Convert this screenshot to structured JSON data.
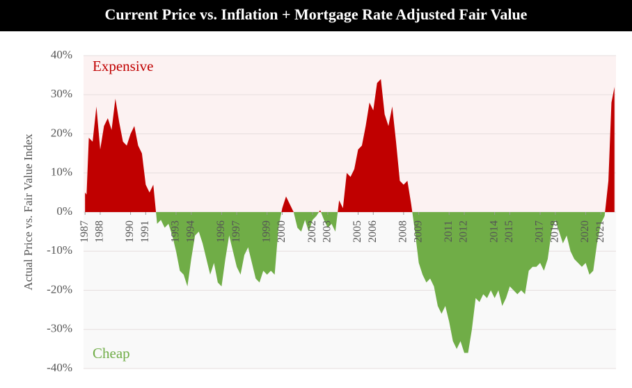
{
  "chart_data": {
    "type": "area",
    "title": "Current Price vs. Inflation + Mortgage Rate Adjusted Fair Value",
    "y_label": "Actual Price vs. Fair Value Index",
    "annotations": [
      "Expensive",
      "Cheap"
    ],
    "colors": {
      "positive": "#c00000",
      "negative": "#70ad47",
      "positive_band": "#fcf2f2",
      "negative_band": "#f9f9f9"
    },
    "grid": true,
    "xlim": [
      1986.9,
      2022.0
    ],
    "xticks": [
      1987,
      1988,
      1990,
      1991,
      1993,
      1994,
      1996,
      1997,
      1999,
      2000,
      2002,
      2003,
      2005,
      2006,
      2008,
      2009,
      2011,
      2012,
      2014,
      2015,
      2017,
      2018,
      2020,
      2021
    ],
    "ylim": [
      -40,
      40
    ],
    "yticks": [
      {
        "value": 40,
        "label": "40%"
      },
      {
        "value": 30,
        "label": "30%"
      },
      {
        "value": 20,
        "label": "20%"
      },
      {
        "value": 10,
        "label": "10%"
      },
      {
        "value": 0,
        "label": "0%"
      },
      {
        "value": -10,
        "label": "-10%"
      },
      {
        "value": -20,
        "label": "-20%"
      },
      {
        "value": -30,
        "label": "-30%"
      },
      {
        "value": -40,
        "label": "-40%"
      }
    ],
    "x": [
      1987.0,
      1987.1,
      1987.25,
      1987.5,
      1987.75,
      1988.0,
      1988.25,
      1988.5,
      1988.75,
      1989.0,
      1989.25,
      1989.5,
      1989.75,
      1990.0,
      1990.25,
      1990.5,
      1990.75,
      1991.0,
      1991.25,
      1991.5,
      1991.75,
      1992.0,
      1992.25,
      1992.5,
      1992.75,
      1993.0,
      1993.25,
      1993.5,
      1993.75,
      1994.0,
      1994.25,
      1994.5,
      1994.75,
      1995.0,
      1995.25,
      1995.5,
      1995.75,
      1996.0,
      1996.25,
      1996.5,
      1996.75,
      1997.0,
      1997.25,
      1997.5,
      1997.75,
      1998.0,
      1998.25,
      1998.5,
      1998.75,
      1999.0,
      1999.25,
      1999.5,
      1999.75,
      2000.0,
      2000.25,
      2000.5,
      2000.75,
      2001.0,
      2001.25,
      2001.5,
      2001.75,
      2002.0,
      2002.25,
      2002.5,
      2002.75,
      2003.0,
      2003.25,
      2003.5,
      2003.75,
      2004.0,
      2004.25,
      2004.5,
      2004.75,
      2005.0,
      2005.25,
      2005.5,
      2005.75,
      2006.0,
      2006.25,
      2006.5,
      2006.75,
      2007.0,
      2007.25,
      2007.5,
      2007.75,
      2008.0,
      2008.25,
      2008.5,
      2008.75,
      2009.0,
      2009.25,
      2009.5,
      2009.75,
      2010.0,
      2010.25,
      2010.5,
      2010.75,
      2011.0,
      2011.25,
      2011.5,
      2011.75,
      2012.0,
      2012.25,
      2012.5,
      2012.75,
      2013.0,
      2013.25,
      2013.5,
      2013.75,
      2014.0,
      2014.25,
      2014.5,
      2014.75,
      2015.0,
      2015.25,
      2015.5,
      2015.75,
      2016.0,
      2016.25,
      2016.5,
      2016.75,
      2017.0,
      2017.25,
      2017.5,
      2017.75,
      2018.0,
      2018.25,
      2018.5,
      2018.75,
      2019.0,
      2019.25,
      2019.5,
      2019.75,
      2020.0,
      2020.25,
      2020.5,
      2020.75,
      2021.0,
      2021.25,
      2021.5,
      2021.7,
      2021.9
    ],
    "values": [
      5,
      4.5,
      19,
      18,
      27,
      16,
      22,
      24,
      21,
      29,
      23,
      18,
      17,
      20,
      22,
      17,
      15,
      7,
      5,
      7,
      -3,
      -2,
      -4,
      -3,
      -6,
      -10,
      -15,
      -16,
      -19,
      -12,
      -6,
      -5,
      -8,
      -12,
      -16,
      -13,
      -18,
      -19,
      -12,
      -6,
      -10,
      -14,
      -16,
      -11,
      -9,
      -13,
      -17,
      -18,
      -15,
      -16,
      -15,
      -16,
      -4,
      1,
      4,
      2,
      0,
      -4,
      -5,
      -2,
      -5,
      -2,
      -1,
      0.5,
      -2,
      -4,
      -3,
      -5,
      3,
      1,
      10,
      9,
      11,
      16,
      17,
      22,
      28,
      26,
      33,
      34,
      25,
      22,
      27,
      18,
      8,
      7,
      8,
      2,
      -5,
      -13,
      -16,
      -18,
      -17,
      -19,
      -24,
      -26,
      -24,
      -28,
      -33,
      -35,
      -33,
      -36,
      -36,
      -30,
      -22,
      -23,
      -21,
      -22,
      -20,
      -22,
      -20,
      -24,
      -22,
      -19,
      -20,
      -21,
      -20,
      -21,
      -15,
      -14,
      -14,
      -13,
      -15,
      -12,
      -5,
      -2,
      -5,
      -8,
      -6,
      -10,
      -12,
      -13,
      -14,
      -13,
      -16,
      -15,
      -8,
      -3,
      -1,
      8,
      28,
      32
    ]
  }
}
